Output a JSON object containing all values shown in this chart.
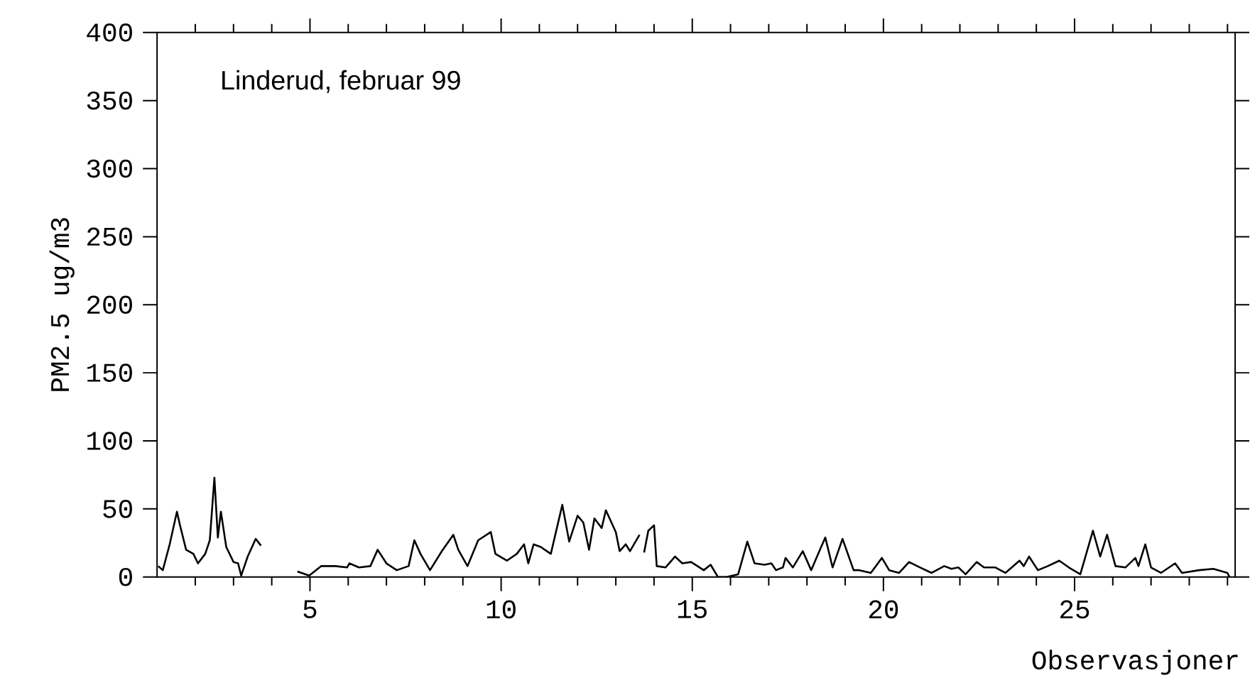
{
  "chart_data": {
    "type": "line",
    "annotations": [
      "Linderud, februar 99"
    ],
    "xlabel": "Observasjoner",
    "ylabel": "PM2.5 ug/m3",
    "color": "#000000",
    "xlim": [
      1,
      29.2
    ],
    "ylim": [
      0,
      400
    ],
    "xticks": [
      {
        "value": 2,
        "label": null
      },
      {
        "value": 3,
        "label": null
      },
      {
        "value": 4,
        "label": null
      },
      5,
      {
        "value": 6,
        "label": null
      },
      {
        "value": 7,
        "label": null
      },
      {
        "value": 8,
        "label": null
      },
      {
        "value": 9,
        "label": null
      },
      10,
      {
        "value": 11,
        "label": null
      },
      {
        "value": 12,
        "label": null
      },
      {
        "value": 13,
        "label": null
      },
      {
        "value": 14,
        "label": null
      },
      15,
      {
        "value": 16,
        "label": null
      },
      {
        "value": 17,
        "label": null
      },
      {
        "value": 18,
        "label": null
      },
      {
        "value": 19,
        "label": null
      },
      20,
      {
        "value": 21,
        "label": null
      },
      {
        "value": 22,
        "label": null
      },
      {
        "value": 23,
        "label": null
      },
      {
        "value": 24,
        "label": null
      },
      25,
      {
        "value": 26,
        "label": null
      },
      {
        "value": 27,
        "label": null
      },
      {
        "value": 28,
        "label": null
      },
      {
        "value": 29,
        "label": null
      }
    ],
    "yticks": [
      0,
      50,
      100,
      150,
      200,
      250,
      300,
      350,
      400
    ],
    "x": [
      1.03,
      1.15,
      1.33,
      1.52,
      1.6,
      1.76,
      1.95,
      2.07,
      2.26,
      2.38,
      2.5,
      2.59,
      2.67,
      2.81,
      3.0,
      3.12,
      3.2,
      3.37,
      3.58,
      3.72,
      4.2,
      4.67,
      4.98,
      5.29,
      5.66,
      5.97,
      6.03,
      6.28,
      6.58,
      6.77,
      7.0,
      7.27,
      7.58,
      7.73,
      7.89,
      8.14,
      8.45,
      8.75,
      8.88,
      9.12,
      9.4,
      9.73,
      9.85,
      10.15,
      10.41,
      10.6,
      10.71,
      10.85,
      11.04,
      11.3,
      11.6,
      11.78,
      12.0,
      12.15,
      12.3,
      12.44,
      12.63,
      12.74,
      13.0,
      13.1,
      13.26,
      13.37,
      13.62,
      13.68,
      13.74,
      13.85,
      14.0,
      14.07,
      14.3,
      14.55,
      14.74,
      14.97,
      15.3,
      15.48,
      15.67,
      15.9,
      16.2,
      16.44,
      16.63,
      16.89,
      17.07,
      17.19,
      17.37,
      17.44,
      17.63,
      17.89,
      18.11,
      18.37,
      18.48,
      18.67,
      18.93,
      19.22,
      19.37,
      19.67,
      19.96,
      20.15,
      20.41,
      20.67,
      20.96,
      21.26,
      21.59,
      21.78,
      21.96,
      22.15,
      22.44,
      22.63,
      22.93,
      23.19,
      23.56,
      23.67,
      23.81,
      24.04,
      24.3,
      24.6,
      24.85,
      25.15,
      25.48,
      25.67,
      25.85,
      26.07,
      26.33,
      26.59,
      26.67,
      26.85,
      27.0,
      27.26,
      27.63,
      27.81,
      28.26,
      28.63,
      29.0,
      29.05
    ],
    "values": [
      8,
      5,
      24,
      48,
      38,
      20,
      17,
      10,
      17,
      27,
      73,
      29,
      48,
      22,
      11,
      10,
      1,
      15,
      28,
      23,
      null,
      4,
      1,
      8,
      8,
      7,
      10,
      7,
      8,
      20,
      10,
      5,
      8,
      27,
      17,
      5,
      19,
      31,
      20,
      8,
      27,
      33,
      17,
      12,
      17,
      24,
      10,
      24,
      22,
      17,
      53,
      26,
      45,
      40,
      20,
      43,
      36,
      49,
      33,
      19,
      24,
      19,
      31,
      null,
      18,
      34,
      38,
      8,
      7,
      15,
      10,
      11,
      5,
      9,
      0,
      0,
      2,
      26,
      10,
      9,
      10,
      5,
      7,
      14,
      7,
      19,
      5,
      22,
      29,
      7,
      28,
      5,
      5,
      3,
      14,
      5,
      3,
      11,
      7,
      3,
      8,
      6,
      7,
      2,
      11,
      7,
      7,
      3,
      12,
      8,
      15,
      5,
      8,
      12,
      7,
      2,
      34,
      15,
      31,
      8,
      7,
      14,
      8,
      24,
      7,
      3,
      10,
      3,
      5,
      6,
      3,
      0
    ]
  }
}
